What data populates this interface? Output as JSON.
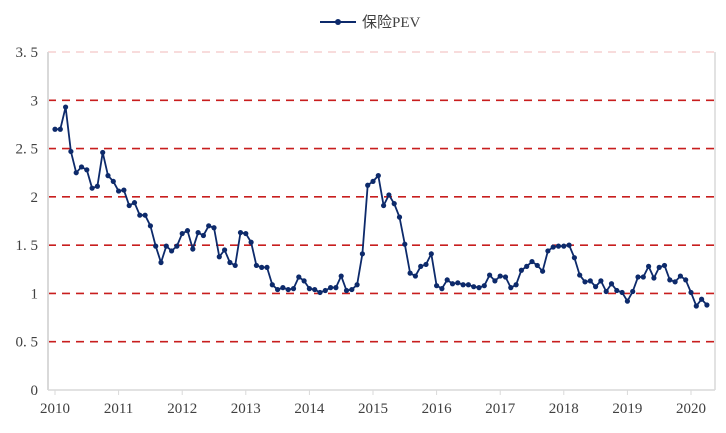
{
  "chart_data": {
    "type": "line",
    "title": "",
    "xlabel": "",
    "ylabel": "",
    "legend": {
      "position": "top",
      "entries": [
        "保险PEV"
      ]
    },
    "ylim": [
      0,
      3.5
    ],
    "y_ticks": [
      "0",
      "0. 5",
      "1",
      "1. 5",
      "2",
      "2. 5",
      "3",
      "3. 5"
    ],
    "x_ticks": [
      "2010",
      "2011",
      "2012",
      "2013",
      "2014",
      "2015",
      "2016",
      "2017",
      "2018",
      "2019",
      "2020"
    ],
    "grid": "horizontal dashed",
    "colors": {
      "series": "#0d2a6b",
      "grid": "#c81e1e",
      "axis": "#d9d9d9"
    },
    "start_month": "2010-01",
    "frequency": "monthly",
    "series": [
      {
        "name": "保险PEV",
        "values": [
          2.7,
          2.7,
          2.93,
          2.47,
          2.25,
          2.31,
          2.28,
          2.09,
          2.11,
          2.46,
          2.22,
          2.16,
          2.06,
          2.07,
          1.91,
          1.94,
          1.81,
          1.81,
          1.7,
          1.49,
          1.32,
          1.49,
          1.44,
          1.49,
          1.62,
          1.65,
          1.46,
          1.63,
          1.6,
          1.7,
          1.68,
          1.38,
          1.45,
          1.32,
          1.29,
          1.63,
          1.62,
          1.53,
          1.29,
          1.27,
          1.27,
          1.09,
          1.04,
          1.06,
          1.04,
          1.05,
          1.17,
          1.13,
          1.05,
          1.04,
          1.01,
          1.03,
          1.06,
          1.06,
          1.18,
          1.03,
          1.04,
          1.09,
          1.41,
          2.12,
          2.16,
          2.22,
          1.91,
          2.02,
          1.93,
          1.79,
          1.51,
          1.21,
          1.18,
          1.28,
          1.3,
          1.41,
          1.08,
          1.05,
          1.14,
          1.1,
          1.11,
          1.09,
          1.09,
          1.07,
          1.06,
          1.08,
          1.19,
          1.13,
          1.18,
          1.17,
          1.06,
          1.09,
          1.24,
          1.28,
          1.33,
          1.29,
          1.23,
          1.44,
          1.48,
          1.49,
          1.49,
          1.5,
          1.37,
          1.19,
          1.12,
          1.13,
          1.07,
          1.13,
          1.02,
          1.1,
          1.03,
          1.01,
          0.92,
          1.02,
          1.17,
          1.17,
          1.28,
          1.16,
          1.27,
          1.29,
          1.14,
          1.12,
          1.18,
          1.14,
          1.01,
          0.87,
          0.94,
          0.88
        ]
      }
    ]
  }
}
